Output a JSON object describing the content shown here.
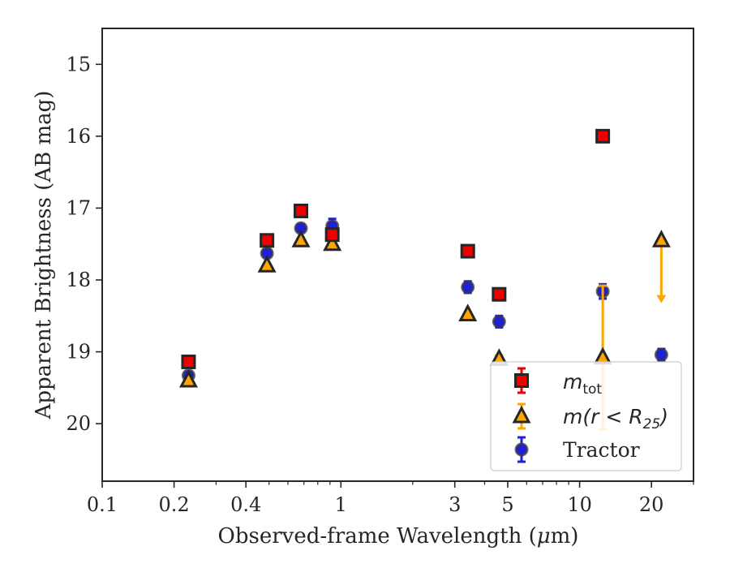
{
  "chart_data": {
    "type": "scatter",
    "xscale": "log",
    "xlim": [
      0.1,
      30
    ],
    "ylim": [
      20.8,
      14.5
    ],
    "y_inverted": true,
    "xlabel": "Observed-frame Wavelength (",
    "xlabel_mu": "μ",
    "xlabel_end": "m)",
    "ylabel": "Apparent Brightness (AB mag)",
    "xticks": [
      {
        "value": 0.1,
        "label": "0.1"
      },
      {
        "value": 0.2,
        "label": "0.2"
      },
      {
        "value": 0.4,
        "label": "0.4"
      },
      {
        "value": 1,
        "label": "1"
      },
      {
        "value": 3,
        "label": "3"
      },
      {
        "value": 5,
        "label": "5"
      },
      {
        "value": 10,
        "label": "10"
      },
      {
        "value": 20,
        "label": "20"
      }
    ],
    "xminor": [
      0.3,
      0.5,
      0.6,
      0.7,
      0.8,
      0.9,
      2,
      4,
      6,
      7,
      8,
      9,
      30
    ],
    "yticks": [
      {
        "value": 15,
        "label": "15"
      },
      {
        "value": 16,
        "label": "16"
      },
      {
        "value": 17,
        "label": "17"
      },
      {
        "value": 18,
        "label": "18"
      },
      {
        "value": 19,
        "label": "19"
      },
      {
        "value": 20,
        "label": "20"
      }
    ],
    "series": [
      {
        "key": "tractor",
        "name": "Tractor",
        "marker": "circle",
        "color": "#1f1fe0",
        "edge": "#3a3a3a",
        "ecolor": "#1f1fe0",
        "points": [
          {
            "x": 0.23,
            "y": 19.33,
            "err": 0.05
          },
          {
            "x": 0.49,
            "y": 17.63,
            "err": 0.05
          },
          {
            "x": 0.68,
            "y": 17.28,
            "err": 0.05
          },
          {
            "x": 0.92,
            "y": 17.25,
            "err": 0.1
          },
          {
            "x": 3.4,
            "y": 18.1,
            "err": 0.08
          },
          {
            "x": 4.6,
            "y": 18.58,
            "err": 0.08
          },
          {
            "x": 12.5,
            "y": 18.16,
            "err": 0.1
          },
          {
            "x": 22.0,
            "y": 19.04,
            "err": 0.08
          }
        ]
      },
      {
        "key": "mr25",
        "name_math": "m(r < R",
        "name_sub": "25",
        "name_close": ")",
        "marker": "triangle",
        "color": "#ffa500",
        "edge": "#262626",
        "ecolor": "#ffa500",
        "points": [
          {
            "x": 0.23,
            "y": 19.4,
            "err": 0.03
          },
          {
            "x": 0.49,
            "y": 17.8,
            "err": 0.03
          },
          {
            "x": 0.68,
            "y": 17.45,
            "err": 0.03
          },
          {
            "x": 0.92,
            "y": 17.5,
            "err": 0.03
          },
          {
            "x": 3.4,
            "y": 18.48,
            "err": 0.03
          },
          {
            "x": 4.6,
            "y": 19.1,
            "err": 0.05
          },
          {
            "x": 12.5,
            "y": 19.08,
            "err": 1.0
          },
          {
            "x": 22.0,
            "y": 17.45,
            "upper_limit_to": 18.3
          }
        ]
      },
      {
        "key": "mtot",
        "name_math": "m",
        "name_sub": "tot",
        "marker": "square",
        "color": "#ee0000",
        "edge": "#262626",
        "ecolor": "#ee0000",
        "points": [
          {
            "x": 0.23,
            "y": 19.14,
            "err": 0.03
          },
          {
            "x": 0.49,
            "y": 17.45,
            "err": 0.03
          },
          {
            "x": 0.68,
            "y": 17.04,
            "err": 0.03
          },
          {
            "x": 0.92,
            "y": 17.37,
            "err": 0.03
          },
          {
            "x": 3.4,
            "y": 17.6,
            "err": 0.03
          },
          {
            "x": 4.6,
            "y": 18.2,
            "err": 0.03
          },
          {
            "x": 12.5,
            "y": 16.0,
            "err": 0.03
          }
        ]
      }
    ],
    "legend": {
      "position": "lower right"
    }
  }
}
